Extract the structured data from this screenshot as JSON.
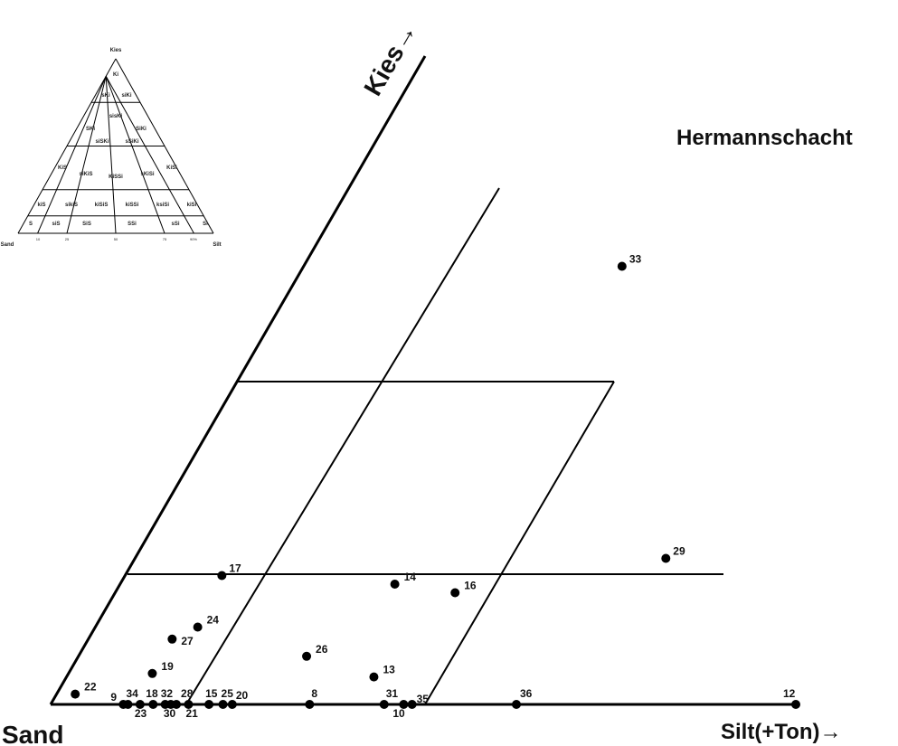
{
  "title": "Hermannschacht",
  "axes": {
    "left_corner": "Sand",
    "bottom_right": "Silt(+Ton)→",
    "top": "Kies→"
  },
  "inset": {
    "corner_top": "Kies",
    "corner_left": "Sand",
    "corner_right": "Silt",
    "fields": [
      "Ki",
      "sKi",
      "siKi",
      "SKi",
      "sisKi",
      "SiKi",
      "siSKi",
      "sSiKi",
      "KiS",
      "siKiS",
      "KiSSi",
      "sKiSi",
      "KiSi",
      "kiS",
      "sikiS",
      "kiSiS",
      "kiSSi",
      "ksiSi",
      "kiSi",
      "S",
      "siS",
      "SiS",
      "SSi",
      "sSi",
      "Si"
    ],
    "ticks": [
      "10",
      "25",
      "50",
      "75",
      "90%",
      "10",
      "25",
      "50",
      "75",
      "90"
    ]
  },
  "chart_data": {
    "type": "scatter",
    "points": [
      {
        "label": "33",
        "x": 34.2,
        "y": 25.5
      },
      {
        "label": "29",
        "x": 57.0,
        "y": 8.5
      },
      {
        "label": "17",
        "x": 10.4,
        "y": 7.5
      },
      {
        "label": "14",
        "x": 29.5,
        "y": 7.0
      },
      {
        "label": "16",
        "x": 36.5,
        "y": 6.5
      },
      {
        "label": "24",
        "x": 11.0,
        "y": 4.5
      },
      {
        "label": "27",
        "x": 9.0,
        "y": 3.8
      },
      {
        "label": "26",
        "x": 24.5,
        "y": 2.8
      },
      {
        "label": "19",
        "x": 9.0,
        "y": 1.8
      },
      {
        "label": "13",
        "x": 33.0,
        "y": 1.6
      },
      {
        "label": "22",
        "x": 2.0,
        "y": 0.6
      },
      {
        "label": "9",
        "x": 7.8,
        "y": 0
      },
      {
        "label": "34",
        "x": 8.3,
        "y": 0
      },
      {
        "label": "23",
        "x": 9.6,
        "y": 0
      },
      {
        "label": "18",
        "x": 11.0,
        "y": 0
      },
      {
        "label": "32",
        "x": 12.3,
        "y": 0
      },
      {
        "label": "30",
        "x": 12.9,
        "y": 0
      },
      {
        "label": "28",
        "x": 13.5,
        "y": 0
      },
      {
        "label": "21",
        "x": 14.8,
        "y": 0
      },
      {
        "label": "15",
        "x": 17.0,
        "y": 0
      },
      {
        "label": "25",
        "x": 18.5,
        "y": 0
      },
      {
        "label": "20",
        "x": 19.5,
        "y": 0
      },
      {
        "label": "8",
        "x": 27.8,
        "y": 0
      },
      {
        "label": "31",
        "x": 35.8,
        "y": 0
      },
      {
        "label": "10",
        "x": 37.9,
        "y": 0
      },
      {
        "label": "35",
        "x": 38.8,
        "y": 0
      },
      {
        "label": "36",
        "x": 50.0,
        "y": 0
      },
      {
        "label": "12",
        "x": 80.0,
        "y": 0
      }
    ]
  }
}
